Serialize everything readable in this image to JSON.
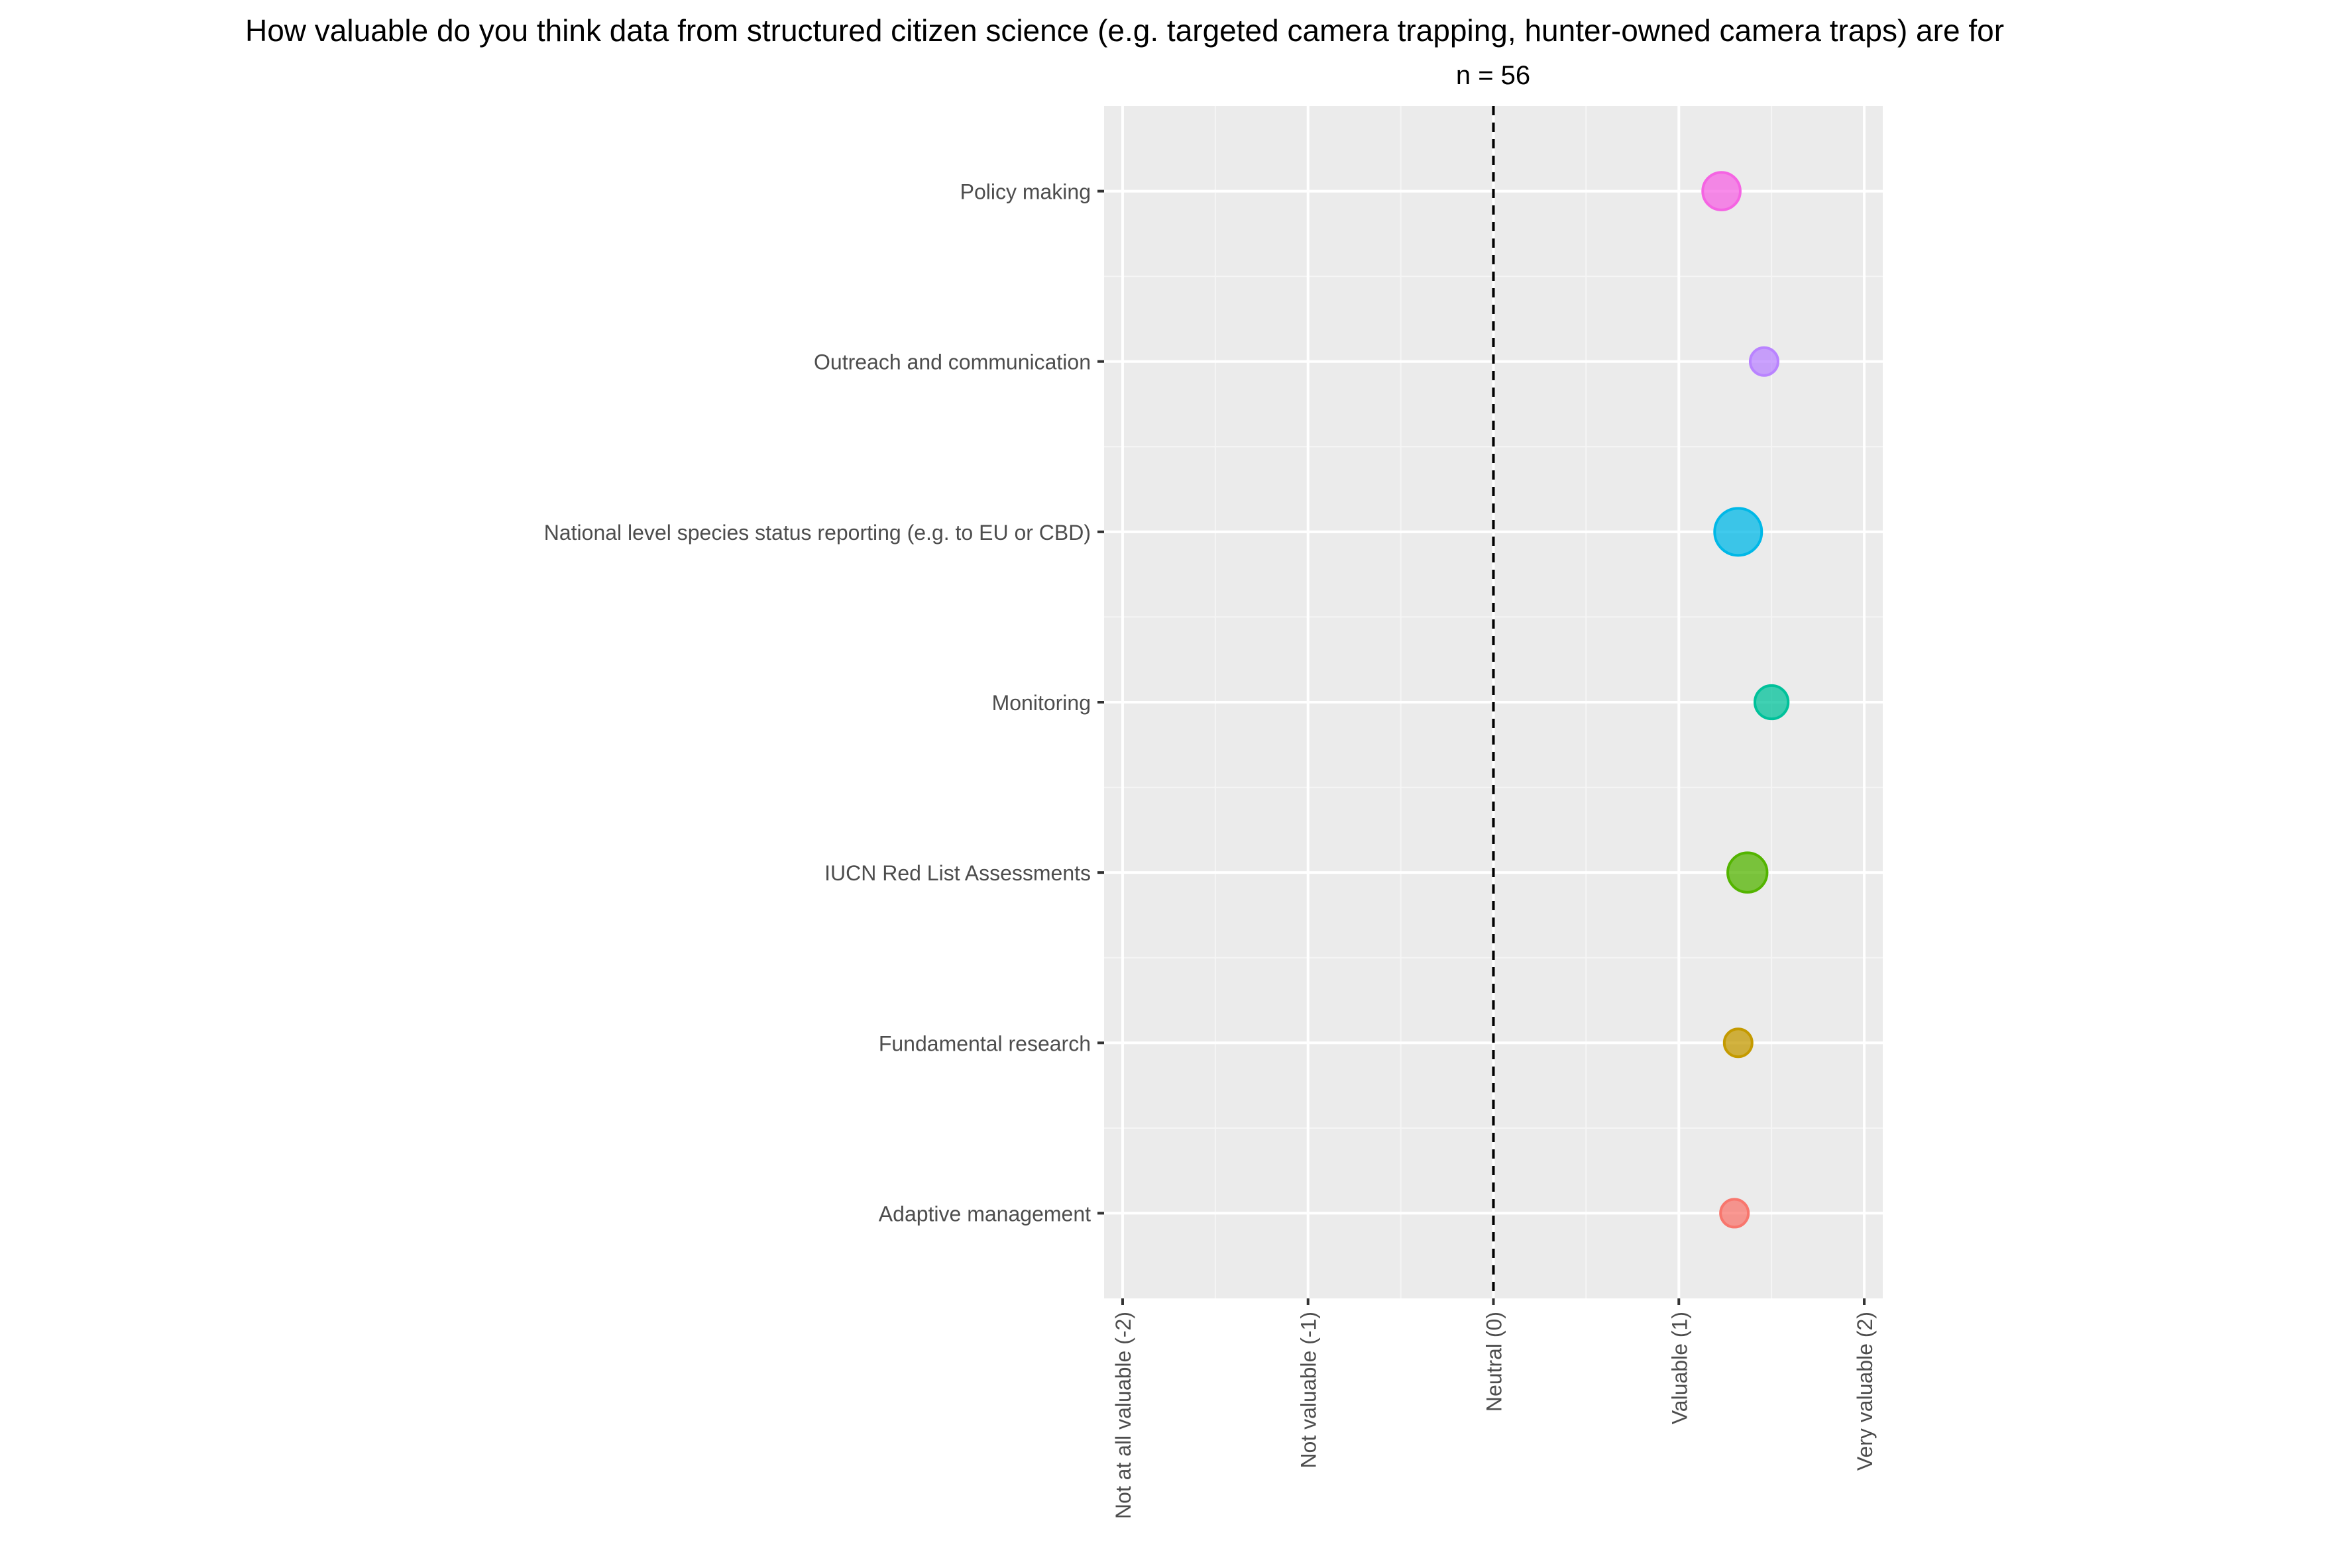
{
  "chart_data": {
    "type": "scatter",
    "title": "How valuable do you think data from structured citizen science (e.g. targeted camera trapping, hunter-owned camera traps) are for",
    "subtitle": "n = 56",
    "xlabel": "",
    "ylabel": "",
    "xlim": [
      -2.1,
      2.1
    ],
    "x_ticks": [
      {
        "value": -2,
        "label": "Not at all valuable (-2)"
      },
      {
        "value": -1,
        "label": "Not valuable (-1)"
      },
      {
        "value": 0,
        "label": "Neutral (0)"
      },
      {
        "value": 1,
        "label": "Valuable (1)"
      },
      {
        "value": 2,
        "label": "Very valuable (2)"
      }
    ],
    "reference_line": {
      "x": 0,
      "style": "dashed"
    },
    "grid": true,
    "legend": "none",
    "categories": [
      "Policy making",
      "Outreach and communication",
      "National level species status reporting (e.g. to EU or CBD)",
      "Monitoring",
      "IUCN Red List Assessments",
      "Fundamental research",
      "Adaptive management"
    ],
    "points": [
      {
        "category": "Policy making",
        "x": 1.23,
        "size": 3,
        "color": "#F564E3"
      },
      {
        "category": "Outreach and communication",
        "x": 1.46,
        "size": 1,
        "color": "#B983FF"
      },
      {
        "category": "National level species status reporting (e.g. to EU or CBD)",
        "x": 1.32,
        "size": 6,
        "color": "#00B8E7"
      },
      {
        "category": "Monitoring",
        "x": 1.5,
        "size": 2,
        "color": "#00C19A"
      },
      {
        "category": "IUCN Red List Assessments",
        "x": 1.37,
        "size": 3.5,
        "color": "#53B400"
      },
      {
        "category": "Fundamental research",
        "x": 1.32,
        "size": 1,
        "color": "#C49A00"
      },
      {
        "category": "Adaptive management",
        "x": 1.3,
        "size": 1,
        "color": "#F8766D"
      }
    ],
    "colors": {
      "panel_background": "#EBEBEB",
      "grid_major": "#FFFFFF",
      "grid_minor": "#F5F5F5",
      "tick_text": "#4D4D4D",
      "title_text": "#000000"
    }
  }
}
